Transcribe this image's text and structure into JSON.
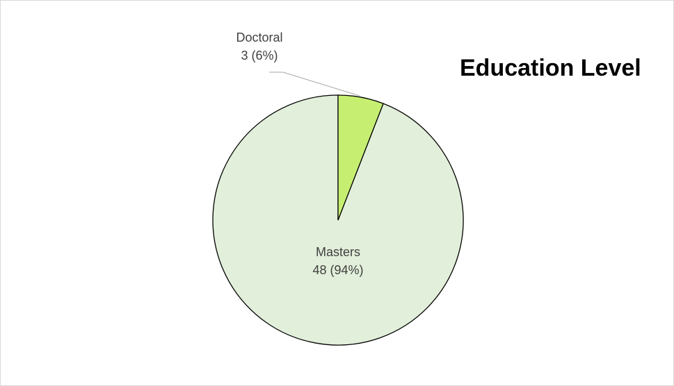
{
  "chart_data": {
    "type": "pie",
    "title": "Education Level",
    "slices": [
      {
        "label": "Masters",
        "value": 48,
        "percent": "94%",
        "display": "48 (94%)",
        "color": "#e2efda"
      },
      {
        "label": "Doctoral",
        "value": 3,
        "percent": "6%",
        "display": "3 (6%)",
        "color": "#c6ef72"
      }
    ],
    "start_angle_deg": 0,
    "direction": "counterclockwise",
    "legend": "none",
    "slice_border_color": "#000000",
    "leader_line_color": "#a6a6a6"
  }
}
